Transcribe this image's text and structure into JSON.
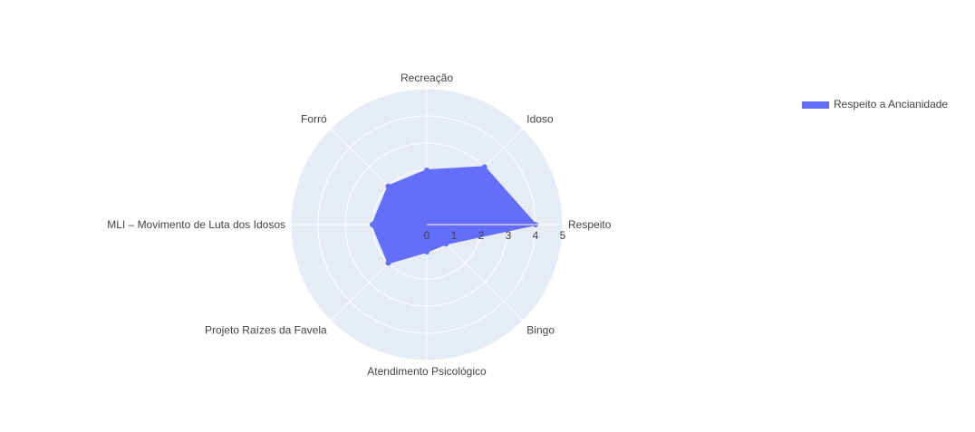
{
  "chart_data": {
    "type": "radar",
    "range": [
      0,
      5
    ],
    "ticks": [
      0,
      1,
      2,
      3,
      4,
      5
    ],
    "categories": [
      "Respeito",
      "Idoso",
      "Recreação",
      "Forró",
      "MLI – Movimento de Luta dos Idosos",
      "Projeto Raízes da Favela",
      "Atendimento Psicológico",
      "Bingo"
    ],
    "series": [
      {
        "name": "Respeito a Ancianidade",
        "values": [
          4,
          3,
          2,
          2,
          2,
          2,
          1,
          1
        ]
      }
    ],
    "legend_position": "top-right",
    "colors": {
      "series": "#636efa",
      "polar_bg": "#e5ecf6",
      "grid": "#ffffff",
      "text": "#444444"
    }
  }
}
